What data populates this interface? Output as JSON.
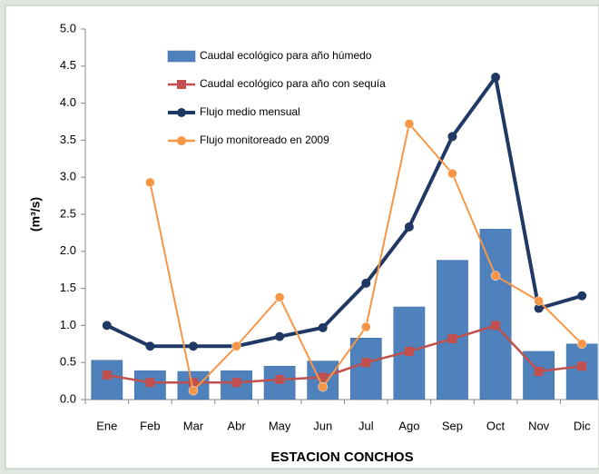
{
  "chart_data": {
    "type": "bar_line",
    "y_label": "(m³/s)",
    "x_label": "ESTACION CONCHOS",
    "categories": [
      "Ene",
      "Feb",
      "Mar",
      "Abr",
      "May",
      "Jun",
      "Jul",
      "Ago",
      "Sep",
      "Oct",
      "Nov",
      "Dic"
    ],
    "series": [
      {
        "name": "Caudal ecológico para año húmedo",
        "kind": "bar",
        "color": "#4f81bd",
        "values": [
          0.53,
          0.39,
          0.38,
          0.39,
          0.45,
          0.52,
          0.83,
          1.25,
          1.88,
          2.3,
          0.65,
          0.75
        ]
      },
      {
        "name": "Caudal ecológico para año con sequía",
        "kind": "line",
        "marker": "square",
        "color": "#c0504d",
        "values": [
          0.33,
          0.23,
          0.23,
          0.23,
          0.27,
          0.3,
          0.5,
          0.65,
          0.82,
          1.0,
          0.38,
          0.45
        ]
      },
      {
        "name": "Flujo medio mensual",
        "kind": "line",
        "marker": "circle",
        "color": "#1f3864",
        "values": [
          1.0,
          0.72,
          0.72,
          0.72,
          0.85,
          0.97,
          1.57,
          2.33,
          3.55,
          4.35,
          1.23,
          1.4
        ]
      },
      {
        "name": "Flujo monitoreado en 2009",
        "kind": "line",
        "marker": "circle",
        "color": "#f79646",
        "values": [
          null,
          2.93,
          0.12,
          0.72,
          1.38,
          0.17,
          0.98,
          3.72,
          3.05,
          1.67,
          1.33,
          0.75
        ]
      }
    ],
    "ylim": [
      0,
      5
    ],
    "yticks": [
      {
        "value": 0,
        "label": "0.0"
      },
      0.5,
      {
        "value": 1,
        "label": "1.0"
      },
      1.5,
      {
        "value": 2,
        "label": "2.0"
      },
      2.5,
      {
        "value": 3,
        "label": "3.0"
      },
      3.5,
      {
        "value": 4,
        "label": "4.0"
      },
      4.5,
      {
        "value": 5,
        "label": "5.0"
      }
    ],
    "legend": "upper left"
  }
}
